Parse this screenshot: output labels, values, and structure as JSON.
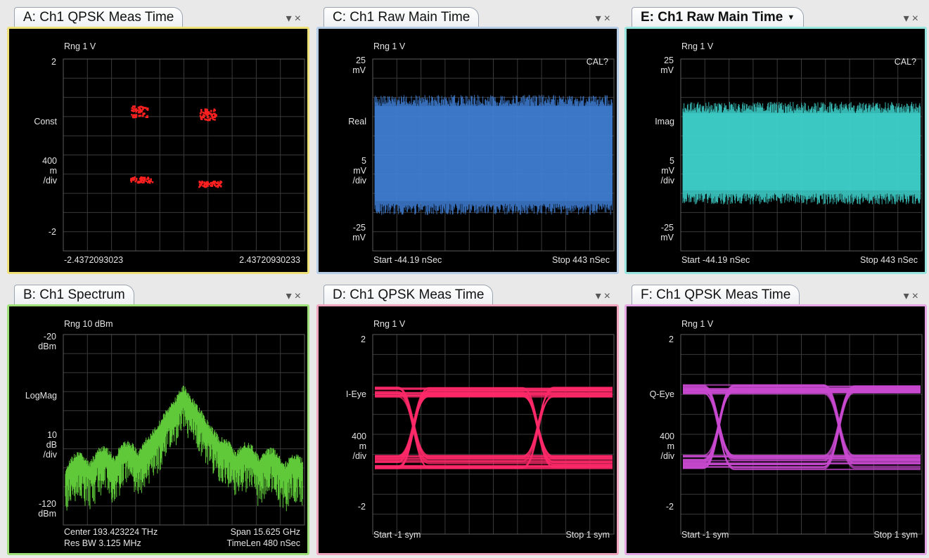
{
  "panels": {
    "A": {
      "title": "A: Ch1 QPSK Meas Time",
      "border": "#f0e07a",
      "range": "Rng 1  V",
      "y_top": "2",
      "trace": "Const",
      "scale": [
        "400",
        "m",
        "/div"
      ],
      "y_bottom": "-2",
      "x_left": "-2.4372093023",
      "x_right": "2.43720930233",
      "trace_color": "#ff2020"
    },
    "C": {
      "title": "C: Ch1 Raw Main Time",
      "border": "#b6cde8",
      "range": "Rng 1  V",
      "y_top": [
        "25",
        "mV"
      ],
      "trace": "Real",
      "scale": [
        "5",
        "mV",
        "/div"
      ],
      "y_bottom": [
        "-25",
        "mV"
      ],
      "cal": "CAL?",
      "x_left": "Start -44.19  nSec",
      "x_right": "Stop 443  nSec",
      "trace_color": "#3f7fd6"
    },
    "E": {
      "title": "E: Ch1 Raw Main Time",
      "border": "#98e4df",
      "range": "Rng 1  V",
      "y_top": [
        "25",
        "mV"
      ],
      "trace": "Imag",
      "scale": [
        "5",
        "mV",
        "/div"
      ],
      "y_bottom": [
        "-25",
        "mV"
      ],
      "cal": "CAL?",
      "x_left": "Start -44.19  nSec",
      "x_right": "Stop 443  nSec",
      "trace_color": "#3fd6d0"
    },
    "B": {
      "title": "B: Ch1 Spectrum",
      "border": "#9fe07a",
      "range": "Rng 10  dBm",
      "y_top": [
        "-20",
        "dBm"
      ],
      "trace": "LogMag",
      "scale": [
        "10",
        "dB",
        "/div"
      ],
      "y_bottom": [
        "-120",
        "dBm"
      ],
      "x_left": "Center 193.423224  THz",
      "x_left2": "Res BW  3.125  MHz",
      "x_right": "Span 15.625  GHz",
      "x_right2": "TimeLen 480  nSec",
      "trace_color": "#5fc93a"
    },
    "D": {
      "title": "D: Ch1 QPSK Meas Time",
      "border": "#f0a6bf",
      "range": "Rng 1  V",
      "y_top": "2",
      "trace": "I-Eye",
      "scale": [
        "400",
        "m",
        "/div"
      ],
      "y_bottom": "-2",
      "x_left": "Start -1   sym",
      "x_right": "Stop 1   sym",
      "trace_color": "#ff2a6a"
    },
    "F": {
      "title": "F: Ch1 QPSK Meas Time",
      "border": "#e6a8e4",
      "range": "Rng 1  V",
      "y_top": "2",
      "trace": "Q-Eye",
      "scale": [
        "400",
        "m",
        "/div"
      ],
      "y_bottom": "-2",
      "x_left": "Start -1   sym",
      "x_right": "Stop 1   sym",
      "trace_color": "#c84ad0"
    }
  },
  "controls": {
    "dropdown": "▾",
    "close": "×"
  }
}
